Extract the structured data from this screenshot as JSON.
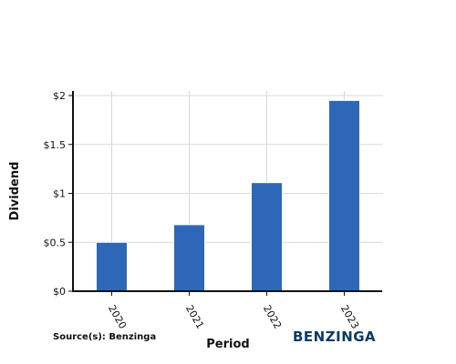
{
  "chart_data": {
    "type": "bar",
    "categories": [
      "2020",
      "2021",
      "2022",
      "2023"
    ],
    "values": [
      0.5,
      0.68,
      1.11,
      1.95
    ],
    "xlabel": "Period",
    "ylabel": "Dividend",
    "ylim": [
      0,
      2
    ],
    "yticks": [
      {
        "value": 0,
        "label": "$0"
      },
      {
        "value": 0.5,
        "label": "$0.5"
      },
      {
        "value": 1,
        "label": "$1"
      },
      {
        "value": 1.5,
        "label": "$1.5"
      },
      {
        "value": 2,
        "label": "$2"
      }
    ],
    "grid": true,
    "bar_color": "#2e67b8"
  },
  "footer": {
    "source": "Source(s): Benzinga",
    "brand": "BENZINGA",
    "brand_color": "#0b3b66"
  }
}
